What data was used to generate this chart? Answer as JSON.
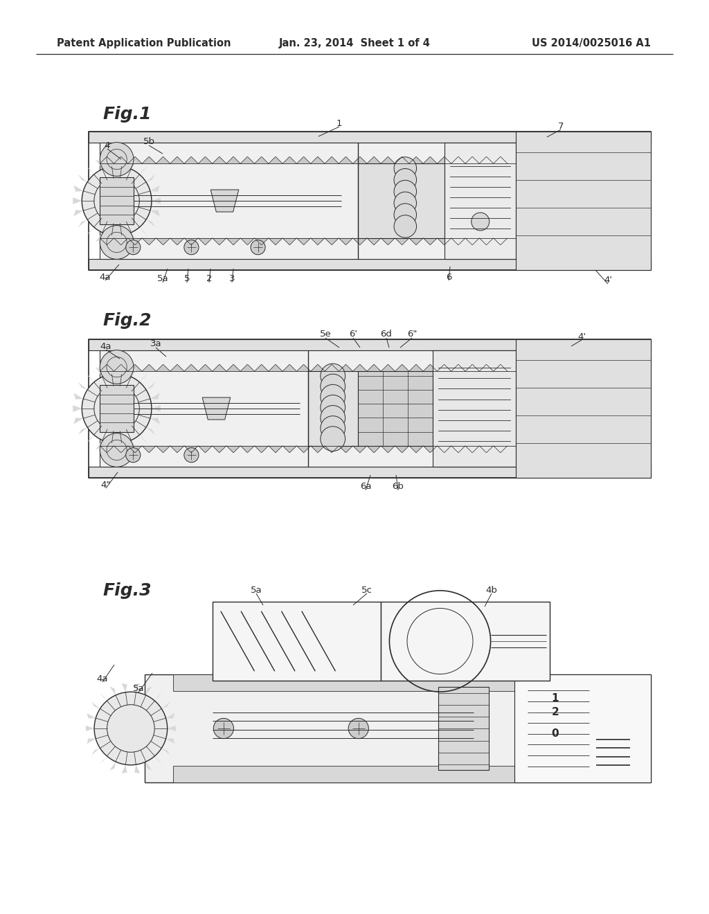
{
  "background_color": "#ffffff",
  "header_left": "Patent Application Publication",
  "header_center": "Jan. 23, 2014  Sheet 1 of 4",
  "header_right": "US 2014/0025016 A1",
  "fig1_label": "Fig.1",
  "fig2_label": "Fig.2",
  "fig3_label": "Fig.3",
  "line_color": "#2a2a2a",
  "fill_light": "#f0f0f0",
  "fill_med": "#d8d8d8",
  "fill_dark": "#b0b0b0",
  "fill_white": "#fafafa"
}
